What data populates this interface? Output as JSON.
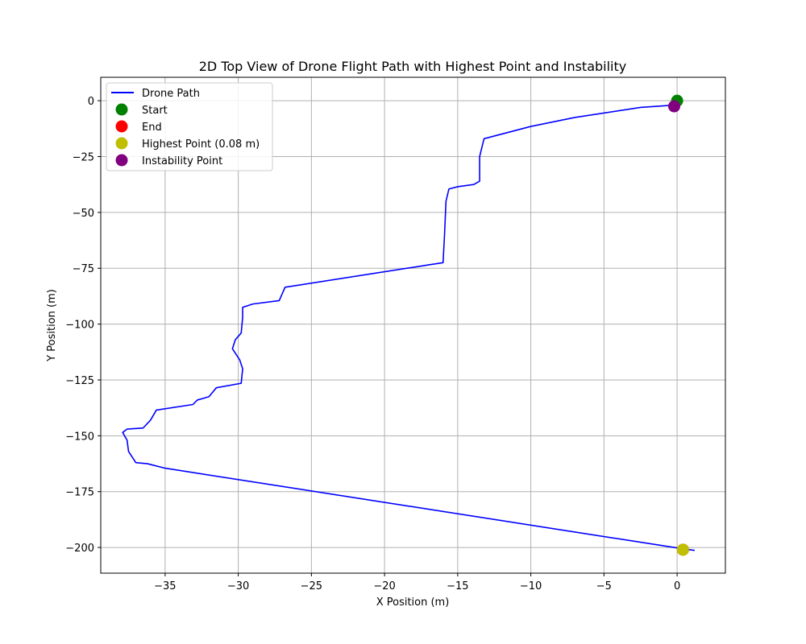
{
  "chart_data": {
    "type": "line",
    "title": "2D Top View of Drone Flight Path with Highest Point and Instability",
    "xlabel": "X Position (m)",
    "ylabel": "Y Position (m)",
    "xlim": [
      -39.4,
      3.3
    ],
    "ylim": [
      -211.5,
      10.5
    ],
    "xticks": [
      -35,
      -30,
      -25,
      -20,
      -15,
      -10,
      -5,
      0
    ],
    "yticks": [
      0,
      -25,
      -50,
      -75,
      -100,
      -125,
      -150,
      -175,
      -200
    ],
    "grid": true,
    "legend_position": "upper-left",
    "series": [
      {
        "name": "Drone Path",
        "kind": "line",
        "color": "#0000ff",
        "points": [
          [
            0.0,
            0.0
          ],
          [
            -0.2,
            -1.0
          ],
          [
            -0.3,
            -2.0
          ],
          [
            -2.5,
            -3.0
          ],
          [
            -7.0,
            -7.5
          ],
          [
            -10.0,
            -11.5
          ],
          [
            -13.2,
            -17.0
          ],
          [
            -13.5,
            -25.0
          ],
          [
            -13.5,
            -36.0
          ],
          [
            -13.9,
            -37.5
          ],
          [
            -15.0,
            -38.5
          ],
          [
            -15.6,
            -39.5
          ],
          [
            -15.8,
            -45.0
          ],
          [
            -15.9,
            -60.0
          ],
          [
            -16.0,
            -72.5
          ],
          [
            -17.0,
            -73.5
          ],
          [
            -26.8,
            -83.5
          ],
          [
            -27.2,
            -89.5
          ],
          [
            -29.0,
            -91.0
          ],
          [
            -29.7,
            -92.5
          ],
          [
            -29.7,
            -97.0
          ],
          [
            -29.8,
            -104.0
          ],
          [
            -30.2,
            -107.0
          ],
          [
            -30.4,
            -111.0
          ],
          [
            -29.9,
            -116.0
          ],
          [
            -29.7,
            -120.0
          ],
          [
            -29.8,
            -126.5
          ],
          [
            -31.5,
            -128.5
          ],
          [
            -32.0,
            -132.5
          ],
          [
            -32.8,
            -134.0
          ],
          [
            -33.1,
            -136.0
          ],
          [
            -35.6,
            -138.5
          ],
          [
            -36.0,
            -143.0
          ],
          [
            -36.5,
            -146.5
          ],
          [
            -37.6,
            -147.0
          ],
          [
            -37.9,
            -148.5
          ],
          [
            -37.6,
            -152.0
          ],
          [
            -37.5,
            -157.0
          ],
          [
            -37.0,
            -162.0
          ],
          [
            -36.2,
            -162.5
          ],
          [
            -35.0,
            -164.5
          ],
          [
            -0.2,
            -200.0
          ],
          [
            0.6,
            -200.8
          ],
          [
            1.2,
            -201.3
          ]
        ]
      },
      {
        "name": "Start",
        "kind": "point",
        "color": "#008000",
        "x": 0.0,
        "y": 0.0
      },
      {
        "name": "End",
        "kind": "point",
        "color": "#ff0000",
        "x": 0.4,
        "y": -201.0
      },
      {
        "name": "Highest Point (0.08 m)",
        "kind": "point",
        "color": "#bfbf00",
        "x": 0.4,
        "y": -201.0
      },
      {
        "name": "Instability Point",
        "kind": "point",
        "color": "#800080",
        "x": -0.2,
        "y": -2.5
      }
    ]
  }
}
